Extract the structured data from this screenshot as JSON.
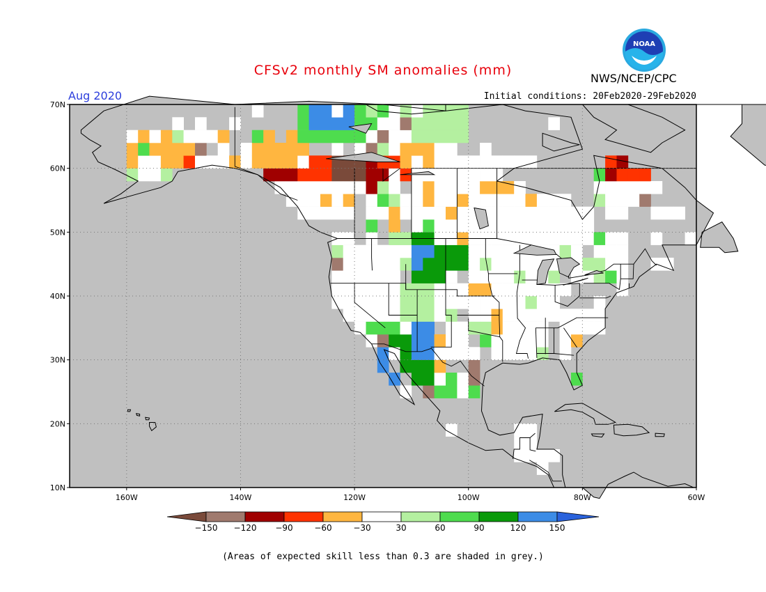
{
  "title": "CFSv2 monthly SM anomalies (mm)",
  "organization": "NWS/NCEP/CPC",
  "logo_text": "NOAA",
  "valid_month": "Aug 2020",
  "initial_conditions": "Initial conditions: 20Feb2020-29Feb2020",
  "footnote": "(Areas of expected skill less than 0.3 are shaded in grey.)",
  "map": {
    "projection": "lat-lon",
    "lon_range": [
      -170,
      -60
    ],
    "lat_range": [
      10,
      70
    ],
    "grid": "dotted",
    "lat_ticks": [
      {
        "value": 70,
        "label": "70N"
      },
      {
        "value": 60,
        "label": "60N"
      },
      {
        "value": 50,
        "label": "50N"
      },
      {
        "value": 40,
        "label": "40N"
      },
      {
        "value": 30,
        "label": "30N"
      },
      {
        "value": 20,
        "label": "20N"
      },
      {
        "value": 10,
        "label": "10N"
      }
    ],
    "lon_ticks": [
      {
        "value": -160,
        "label": "160W"
      },
      {
        "value": -140,
        "label": "140W"
      },
      {
        "value": -120,
        "label": "120W"
      },
      {
        "value": -100,
        "label": "100W"
      },
      {
        "value": -80,
        "label": "80W"
      },
      {
        "value": -60,
        "label": "60W"
      }
    ],
    "grey_color": "#c0c0c0",
    "ocean_color": "#c0c0c0"
  },
  "colorbar": {
    "colors": [
      "#7a4a3a",
      "#a07a6e",
      "#a00000",
      "#ff3300",
      "#ffb640",
      "#ffffff",
      "#b4f0a0",
      "#4edc4e",
      "#0a9a0a",
      "#3c8ce6",
      "#2a62dc"
    ],
    "labels": [
      "−150",
      "−120",
      "−90",
      "−60",
      "−30",
      "30",
      "60",
      "90",
      "120",
      "150"
    ]
  },
  "anomaly_regions": [
    {
      "lon": [
        -155,
        -148
      ],
      "lat": [
        60,
        64
      ],
      "cls": 4
    },
    {
      "lon": [
        -136,
        -128
      ],
      "lat": [
        58,
        63
      ],
      "cls": 2
    },
    {
      "lon": [
        -132,
        -124
      ],
      "lat": [
        59,
        62
      ],
      "cls": 3
    },
    {
      "lon": [
        -138,
        -128
      ],
      "lat": [
        61,
        64
      ],
      "cls": 4
    },
    {
      "lon": [
        -120,
        -116
      ],
      "lat": [
        57,
        61
      ],
      "cls": 2
    },
    {
      "lon": [
        -124,
        -118
      ],
      "lat": [
        59,
        61
      ],
      "cls": 0
    },
    {
      "lon": [
        -116,
        -110
      ],
      "lat": [
        59,
        62
      ],
      "cls": 3
    },
    {
      "lon": [
        -112,
        -106
      ],
      "lat": [
        61,
        64
      ],
      "cls": 4
    },
    {
      "lon": [
        -104,
        -100
      ],
      "lat": [
        60,
        62
      ],
      "cls": 3
    },
    {
      "lon": [
        -130,
        -116
      ],
      "lat": [
        65,
        70
      ],
      "cls": 7
    },
    {
      "lon": [
        -128,
        -120
      ],
      "lat": [
        67,
        70
      ],
      "cls": 9
    },
    {
      "lon": [
        -110,
        -100
      ],
      "lat": [
        65,
        69
      ],
      "cls": 6
    },
    {
      "lon": [
        -110,
        -104
      ],
      "lat": [
        42,
        49
      ],
      "cls": 8
    },
    {
      "lon": [
        -104,
        -98
      ],
      "lat": [
        44,
        48
      ],
      "cls": 8
    },
    {
      "lon": [
        -110,
        -106
      ],
      "lat": [
        45,
        48
      ],
      "cls": 9
    },
    {
      "lon": [
        -114,
        -110
      ],
      "lat": [
        44,
        49
      ],
      "cls": 6
    },
    {
      "lon": [
        -98,
        -95
      ],
      "lat": [
        45,
        49
      ],
      "cls": 6
    },
    {
      "lon": [
        -114,
        -106
      ],
      "lat": [
        27,
        33
      ],
      "cls": 8
    },
    {
      "lon": [
        -116,
        -112
      ],
      "lat": [
        27,
        31
      ],
      "cls": 9
    },
    {
      "lon": [
        -110,
        -106
      ],
      "lat": [
        31,
        35
      ],
      "cls": 9
    },
    {
      "lon": [
        -106,
        -102
      ],
      "lat": [
        24,
        28
      ],
      "cls": 7
    },
    {
      "lon": [
        -118,
        -112
      ],
      "lat": [
        35,
        40
      ],
      "cls": 7
    },
    {
      "lon": [
        -112,
        -106
      ],
      "lat": [
        37,
        41
      ],
      "cls": 6
    },
    {
      "lon": [
        -76,
        -68
      ],
      "lat": [
        59,
        62
      ],
      "cls": 3
    },
    {
      "lon": [
        -74,
        -70
      ],
      "lat": [
        60,
        61
      ],
      "cls": 2
    },
    {
      "lon": [
        -86,
        -80
      ],
      "lat": [
        44,
        47
      ],
      "cls": 5
    },
    {
      "lon": [
        -100,
        -84
      ],
      "lat": [
        36,
        50
      ],
      "cls": 5
    },
    {
      "lon": [
        -96,
        -78
      ],
      "lat": [
        48,
        56
      ],
      "cls": 5
    },
    {
      "lon": [
        -84,
        -76
      ],
      "lat": [
        30,
        38
      ],
      "cls": 5
    },
    {
      "lon": [
        -94,
        -86
      ],
      "lat": [
        29,
        35
      ],
      "cls": 5
    },
    {
      "lon": [
        -122,
        -112
      ],
      "lat": [
        36,
        48
      ],
      "cls": 5
    },
    {
      "lon": [
        -140,
        -120
      ],
      "lat": [
        52,
        58
      ],
      "cls": 5
    },
    {
      "lon": [
        -110,
        -88
      ],
      "lat": [
        53,
        62
      ],
      "cls": 5
    },
    {
      "lon": [
        -92,
        -80
      ],
      "lat": [
        14,
        19
      ],
      "cls": 5
    },
    {
      "lon": [
        -82,
        -80
      ],
      "lat": [
        25,
        29
      ],
      "cls": 7
    }
  ]
}
